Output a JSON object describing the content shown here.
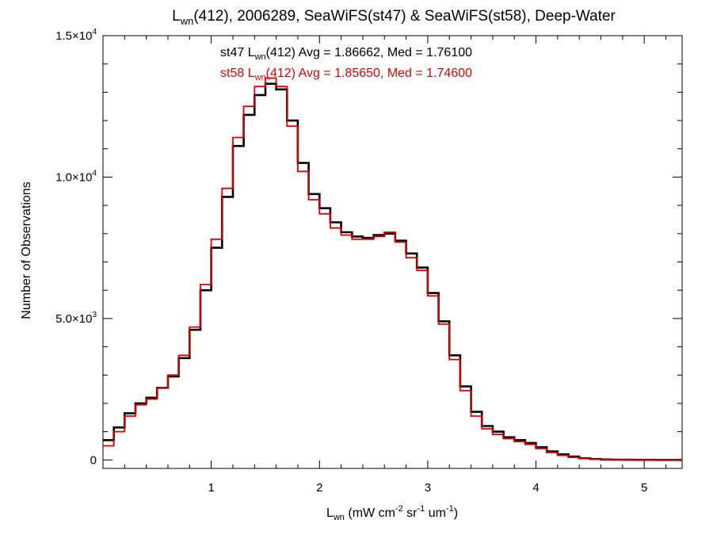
{
  "chart_data": {
    "type": "line",
    "subtype": "step-histogram",
    "title": {
      "main": "L",
      "sub": "wn",
      "rest": "(412), 2006289, SeaWiFS(st47) & SeaWiFS(st58), Deep-Water"
    },
    "xlabel": {
      "main": "L",
      "sub": "wn",
      "p1": " (mW cm",
      "s1": "-2",
      "p2": " sr",
      "s2": "-1",
      "p3": " um",
      "s3": "-1",
      "p4": ")"
    },
    "ylabel": "Number of Observations",
    "xlim": [
      0.0,
      5.35
    ],
    "ylim": [
      -300,
      15000
    ],
    "x_ticks": [
      {
        "value": 1,
        "label": "1"
      },
      {
        "value": 2,
        "label": "2"
      },
      {
        "value": 3,
        "label": "3"
      },
      {
        "value": 4,
        "label": "4"
      },
      {
        "value": 5,
        "label": "5"
      }
    ],
    "y_ticks": [
      {
        "value": 0,
        "mant": "0",
        "exp": ""
      },
      {
        "value": 5000,
        "mant": "5.0×10",
        "exp": "3"
      },
      {
        "value": 10000,
        "mant": "1.0×10",
        "exp": "4"
      },
      {
        "value": 15000,
        "mant": "1.5×10",
        "exp": "4"
      }
    ],
    "grid": false,
    "annotations": [
      {
        "series_index": 0,
        "pre": "st47 L",
        "sub": "wn",
        "post": "(412) Avg = 1.86662, Med = 1.76100",
        "color": "#000000"
      },
      {
        "series_index": 1,
        "pre": "st58 L",
        "sub": "wn",
        "post": "(412) Avg = 1.85650, Med = 1.74600",
        "color": "#e00000"
      }
    ],
    "series": [
      {
        "name": "st47",
        "color": "#000000",
        "x": [
          0.0,
          0.1,
          0.2,
          0.3,
          0.4,
          0.5,
          0.6,
          0.7,
          0.8,
          0.9,
          1.0,
          1.1,
          1.2,
          1.3,
          1.4,
          1.5,
          1.6,
          1.7,
          1.8,
          1.9,
          2.0,
          2.1,
          2.2,
          2.3,
          2.4,
          2.5,
          2.6,
          2.7,
          2.8,
          2.9,
          3.0,
          3.1,
          3.2,
          3.3,
          3.4,
          3.5,
          3.6,
          3.7,
          3.8,
          3.9,
          4.0,
          4.1,
          4.2,
          4.3,
          4.4,
          4.5,
          4.6,
          4.7,
          4.8,
          4.9,
          5.0,
          5.1,
          5.2,
          5.3
        ],
        "values": [
          700,
          1150,
          1650,
          2000,
          2200,
          2550,
          2950,
          3600,
          4600,
          6000,
          7500,
          9300,
          11100,
          12200,
          12900,
          13300,
          13100,
          12000,
          10500,
          9400,
          8900,
          8400,
          8050,
          7900,
          7850,
          7950,
          8000,
          7750,
          7300,
          6800,
          5900,
          4900,
          3700,
          2600,
          1700,
          1200,
          1000,
          800,
          700,
          600,
          450,
          300,
          200,
          120,
          60,
          30,
          15,
          8,
          5,
          3,
          2,
          1,
          0,
          0
        ]
      },
      {
        "name": "st58",
        "color": "#e00000",
        "x": [
          0.0,
          0.1,
          0.2,
          0.3,
          0.4,
          0.5,
          0.6,
          0.7,
          0.8,
          0.9,
          1.0,
          1.1,
          1.2,
          1.3,
          1.4,
          1.5,
          1.6,
          1.7,
          1.8,
          1.9,
          2.0,
          2.1,
          2.2,
          2.3,
          2.4,
          2.5,
          2.6,
          2.7,
          2.8,
          2.9,
          3.0,
          3.1,
          3.2,
          3.3,
          3.4,
          3.5,
          3.6,
          3.7,
          3.8,
          3.9,
          4.0,
          4.1,
          4.2,
          4.3,
          4.4,
          4.5,
          4.6,
          4.7,
          4.8,
          4.9,
          5.0,
          5.1,
          5.2,
          5.3
        ],
        "values": [
          500,
          1000,
          1550,
          1950,
          2150,
          2550,
          3000,
          3700,
          4700,
          6200,
          7800,
          9600,
          11400,
          12500,
          13200,
          13500,
          13200,
          11800,
          10200,
          9200,
          8700,
          8200,
          7950,
          7800,
          7800,
          7900,
          8050,
          7700,
          7150,
          6700,
          5800,
          4800,
          3550,
          2450,
          1550,
          1100,
          900,
          750,
          650,
          550,
          400,
          260,
          160,
          90,
          45,
          20,
          10,
          5,
          3,
          2,
          1,
          1,
          0,
          0
        ]
      }
    ]
  }
}
